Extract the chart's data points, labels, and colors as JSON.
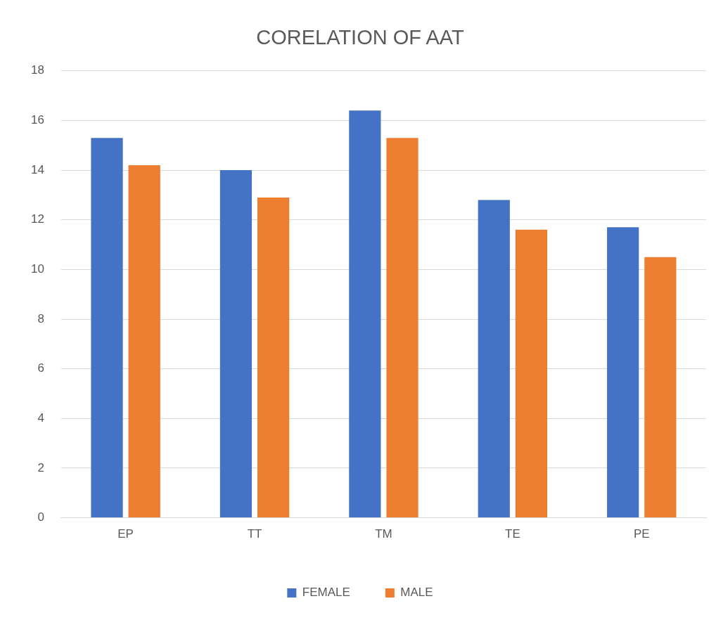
{
  "chart_data": {
    "type": "bar",
    "title": "CORELATION OF AAT",
    "categories": [
      "EP",
      "TT",
      "TM",
      "TE",
      "PE"
    ],
    "series": [
      {
        "name": "FEMALE",
        "color": "#4472c4",
        "values": [
          15.3,
          14.0,
          16.4,
          12.8,
          11.7
        ]
      },
      {
        "name": "MALE",
        "color": "#ed7d31",
        "values": [
          14.2,
          12.9,
          15.3,
          11.6,
          10.5
        ]
      }
    ],
    "ylim": [
      0,
      18
    ],
    "yticks": [
      0,
      2,
      4,
      6,
      8,
      10,
      12,
      14,
      16,
      18
    ],
    "grid": "y",
    "legend": "bottom"
  }
}
